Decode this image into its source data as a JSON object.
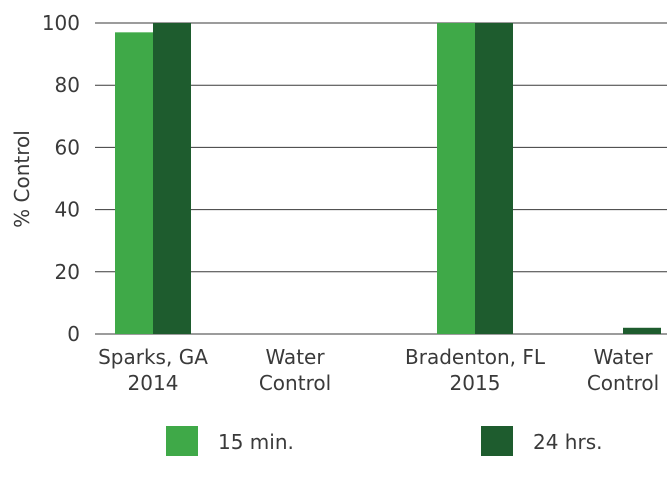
{
  "chart_data": {
    "type": "bar",
    "categories": [
      [
        "Sparks, GA",
        "2014"
      ],
      [
        "Water",
        "Control"
      ],
      [
        "Bradenton, FL",
        "2015"
      ],
      [
        "Water",
        "Control"
      ]
    ],
    "series": [
      {
        "name": "15 min.",
        "color": "#3fa948",
        "values": [
          97,
          0,
          100,
          0
        ]
      },
      {
        "name": "24 hrs.",
        "color": "#1e5c2e",
        "values": [
          100,
          0,
          100,
          2
        ]
      }
    ],
    "title": "",
    "xlabel": "",
    "ylabel": "% Control",
    "ylim": [
      0,
      100
    ],
    "yticks": [
      0,
      20,
      40,
      60,
      80,
      100
    ],
    "grid": "horizontal",
    "legend_position": "bottom"
  }
}
